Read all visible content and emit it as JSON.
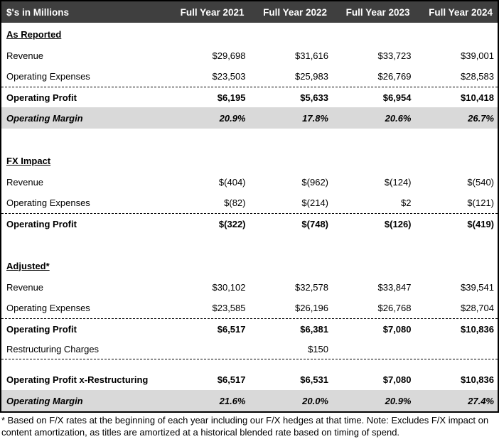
{
  "table": {
    "header": [
      "$'s in Millions",
      "Full Year 2021",
      "Full Year 2022",
      "Full Year 2023",
      "Full Year 2024"
    ],
    "rows": [
      {
        "type": "section",
        "label": "As Reported"
      },
      {
        "type": "normal",
        "label": "Revenue",
        "values": [
          "$29,698",
          "$31,616",
          "$33,723",
          "$39,001"
        ]
      },
      {
        "type": "normal",
        "label": "Operating Expenses",
        "values": [
          "$23,503",
          "$25,983",
          "$26,769",
          "$28,583"
        ]
      },
      {
        "type": "total",
        "label": "Operating Profit",
        "values": [
          "$6,195",
          "$5,633",
          "$6,954",
          "$10,418"
        ],
        "border": "top-dashed"
      },
      {
        "type": "margin",
        "label": "Operating Margin",
        "values": [
          "20.9%",
          "17.8%",
          "20.6%",
          "26.7%"
        ]
      },
      {
        "type": "blank"
      },
      {
        "type": "section",
        "label": "FX Impact"
      },
      {
        "type": "normal",
        "label": "Revenue",
        "values": [
          "$(404)",
          "$(962)",
          "$(124)",
          "$(540)"
        ]
      },
      {
        "type": "normal",
        "label": "Operating Expenses",
        "values": [
          "$(82)",
          "$(214)",
          "$2",
          "$(121)"
        ]
      },
      {
        "type": "total",
        "label": "Operating Profit",
        "values": [
          "$(322)",
          "$(748)",
          "$(126)",
          "$(419)"
        ],
        "border": "top-dashed"
      },
      {
        "type": "blank"
      },
      {
        "type": "section",
        "label": "Adjusted*"
      },
      {
        "type": "normal",
        "label": "Revenue",
        "values": [
          "$30,102",
          "$32,578",
          "$33,847",
          "$39,541"
        ]
      },
      {
        "type": "normal",
        "label": "Operating Expenses",
        "values": [
          "$23,585",
          "$26,196",
          "$26,768",
          "$28,704"
        ]
      },
      {
        "type": "total",
        "label": "Operating Profit",
        "values": [
          "$6,517",
          "$6,381",
          "$7,080",
          "$10,836"
        ],
        "border": "top-dashed"
      },
      {
        "type": "normal",
        "label": "Restructuring Charges",
        "values": [
          "",
          "$150",
          "",
          ""
        ],
        "border": "bottom-dashed"
      },
      {
        "type": "blank-sm"
      },
      {
        "type": "total",
        "label": "Operating Profit x-Restructuring",
        "values": [
          "$6,517",
          "$6,531",
          "$7,080",
          "$10,836"
        ]
      },
      {
        "type": "margin",
        "label": "Operating Margin",
        "values": [
          "21.6%",
          "20.0%",
          "20.9%",
          "27.4%"
        ]
      }
    ]
  },
  "footnote": "* Based on F/X rates at the beginning of each year including our F/X hedges at that time. Note: Excludes F/X impact on content amortization, as titles are amortized at a historical blended rate based on timing of spend.",
  "colors": {
    "header_bg": "#3F3F3F",
    "header_text": "#FFFFFF",
    "margin_row_bg": "#D9D9D9",
    "border": "#000000"
  }
}
